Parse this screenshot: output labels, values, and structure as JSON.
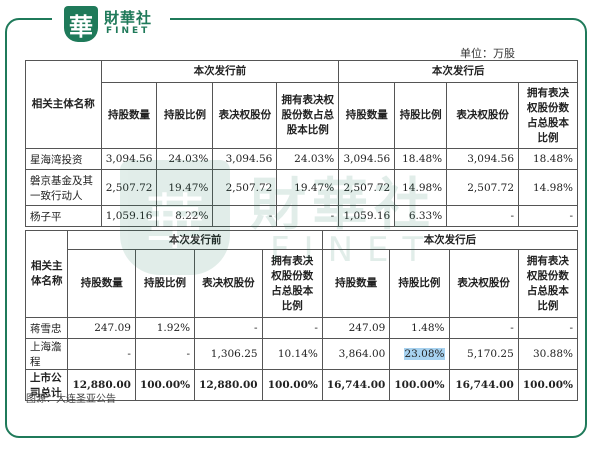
{
  "brand": {
    "cn": "財華社",
    "en": "FINET",
    "logo_char": "華"
  },
  "unit_label": "单位：万股",
  "headers": {
    "entity": "相关主体名称",
    "before": "本次发行前",
    "after": "本次发行后",
    "cols": [
      "持股数量",
      "持股比例",
      "表决权股份",
      "拥有表决权股份数占总股本比例"
    ]
  },
  "table1_rows": [
    {
      "name": "星海湾投资",
      "v": [
        "3,094.56",
        "24.03%",
        "3,094.56",
        "24.03%",
        "3,094.56",
        "18.48%",
        "3,094.56",
        "18.48%"
      ]
    },
    {
      "name": "磐京基金及其一致行动人",
      "v": [
        "2,507.72",
        "19.47%",
        "2,507.72",
        "19.47%",
        "2,507.72",
        "14.98%",
        "2,507.72",
        "14.98%"
      ]
    },
    {
      "name": "杨子平",
      "v": [
        "1,059.16",
        "8.22%",
        "-",
        "-",
        "1,059.16",
        "6.33%",
        "-",
        "-"
      ]
    }
  ],
  "table2_rows": [
    {
      "name": "蒋雪忠",
      "v": [
        "247.09",
        "1.92%",
        "-",
        "-",
        "247.09",
        "1.48%",
        "-",
        "-"
      ]
    },
    {
      "name": "上海澹程",
      "v": [
        "-",
        "-",
        "1,306.25",
        "10.14%",
        "3,864.00",
        "23.08%",
        "5,170.25",
        "30.88%"
      ]
    },
    {
      "name": "上市公司总计",
      "v": [
        "12,880.00",
        "100.00%",
        "12,880.00",
        "100.00%",
        "16,744.00",
        "100.00%",
        "16,744.00",
        "100.00%"
      ]
    }
  ],
  "source": "图源：大连圣亚公告"
}
